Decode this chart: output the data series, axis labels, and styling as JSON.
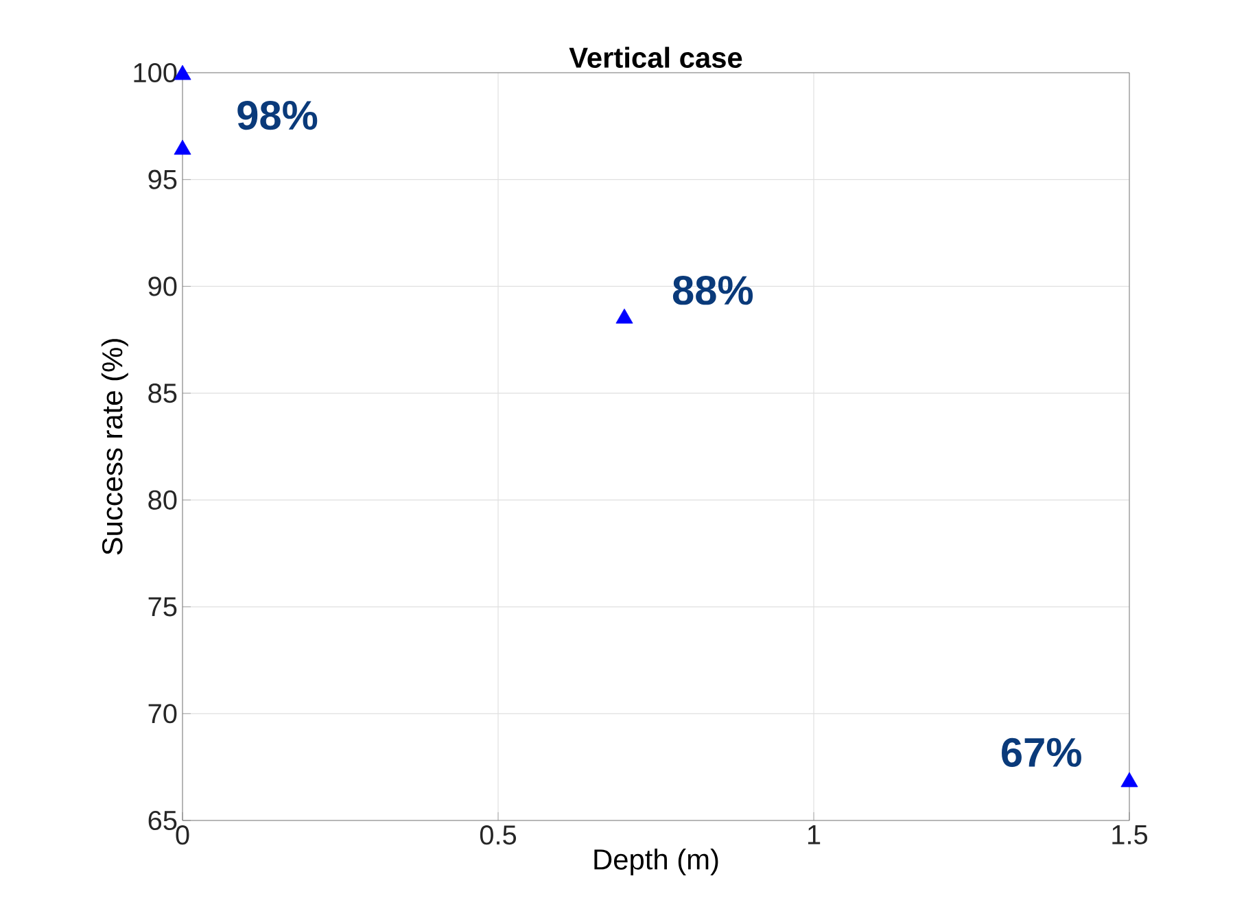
{
  "chart_data": {
    "type": "scatter",
    "title": "Vertical case",
    "xlabel": "Depth (m)",
    "ylabel": "Success rate (%)",
    "x": [
      0,
      0,
      0.7,
      1.5
    ],
    "series": [
      {
        "color": "#0000ff",
        "values": [
          99.9,
          96.4,
          88.5,
          66.8
        ]
      }
    ],
    "marker": "triangle",
    "xlim": [
      0,
      1.5
    ],
    "ylim": [
      65,
      100
    ],
    "xticks": [
      0,
      0.5,
      1,
      1.5
    ],
    "yticks": [
      65,
      70,
      75,
      80,
      85,
      90,
      95,
      100
    ],
    "grid": true,
    "annotations": [
      "98%",
      "88%",
      "67%"
    ]
  }
}
